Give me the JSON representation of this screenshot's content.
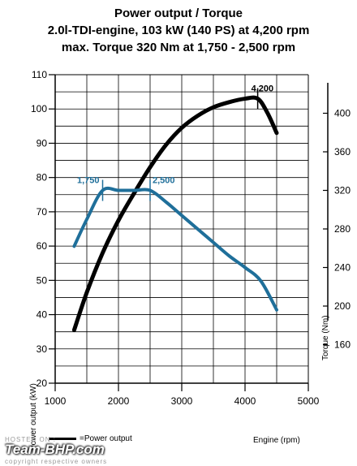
{
  "chart_data": {
    "type": "line",
    "title": "Power output / Torque",
    "subtitle_lines": [
      "2.0l-TDI-engine, 103 kW (140 PS) at 4,200 rpm",
      "max. Torque 320 Nm at 1,750 - 2,500 rpm"
    ],
    "xlabel": "Engine (rpm)",
    "ylabel_left": "Power output (kW)",
    "ylabel_right": "Torque (Nm)",
    "xlim": [
      1000,
      5000
    ],
    "ylim_left": [
      20,
      110
    ],
    "ylim_right": [
      120,
      440
    ],
    "x_ticks": [
      1000,
      2000,
      3000,
      4000,
      5000
    ],
    "y_ticks_left": [
      20,
      30,
      40,
      50,
      60,
      70,
      80,
      90,
      100,
      110
    ],
    "y_ticks_right": [
      160,
      200,
      240,
      280,
      320,
      360,
      400
    ],
    "grid": true,
    "series": [
      {
        "name": "Power output",
        "axis": "left",
        "color": "#000000",
        "x": [
          1300,
          1500,
          1750,
          2000,
          2250,
          2500,
          2750,
          3000,
          3250,
          3500,
          3750,
          4000,
          4200,
          4350,
          4500
        ],
        "y": [
          35.5,
          46.5,
          58,
          67.5,
          75.5,
          83,
          89.5,
          94.5,
          98,
          100.5,
          102,
          103,
          103,
          99,
          93
        ]
      },
      {
        "name": "Torque",
        "axis": "right",
        "color": "#1f6f9a",
        "x": [
          1300,
          1500,
          1750,
          2000,
          2250,
          2500,
          2750,
          3000,
          3250,
          3500,
          3750,
          4000,
          4250,
          4500
        ],
        "y": [
          262,
          290,
          320,
          320,
          320,
          320,
          308,
          294,
          280,
          266,
          252,
          240,
          226,
          196
        ]
      }
    ],
    "annotations": [
      {
        "text": "1,750",
        "x": 1750,
        "series": "Torque"
      },
      {
        "text": "2,500",
        "x": 2500,
        "series": "Torque"
      },
      {
        "text": "4,200",
        "x": 4200,
        "series": "Power output"
      }
    ]
  },
  "legend": {
    "power_label": "Power output",
    "prefix": "= "
  },
  "watermark": {
    "hosted_on": "HOSTED ON :",
    "logo": "Team-BHP.com",
    "copyright": "copyright respective owners"
  }
}
